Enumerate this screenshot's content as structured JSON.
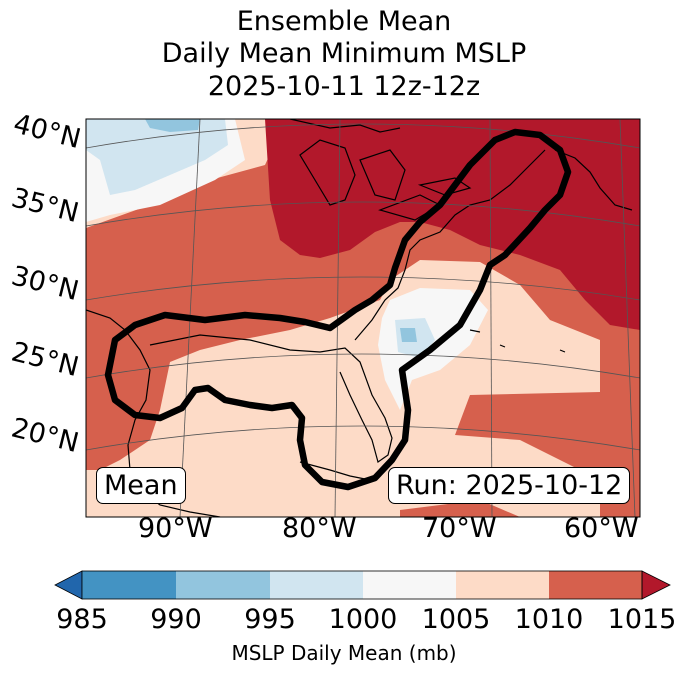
{
  "title": {
    "line1": "Ensemble Mean",
    "line2": "Daily Mean Minimum MSLP",
    "line3": "2025-10-11 12z-12z"
  },
  "map": {
    "lat_labels": [
      "40°N",
      "35°N",
      "30°N",
      "25°N",
      "20°N"
    ],
    "lon_labels": [
      "90°W",
      "80°W",
      "70°W",
      "60°W"
    ],
    "mean_box": "Mean",
    "run_box": "Run: 2025-10-12",
    "fill_colors": {
      "985-990": "#4393c3",
      "990-995": "#92c5de",
      "995-1000": "#d1e5f0",
      "1000-1005": "#f7f7f7",
      "1005-1010": "#fddbc7",
      "1010-1015": "#d6604d",
      "over-1015": "#b2182b"
    }
  },
  "colorbar": {
    "ticks": [
      "985",
      "990",
      "995",
      "1000",
      "1005",
      "1010",
      "1015"
    ],
    "colors": [
      "#2166ac",
      "#4393c3",
      "#92c5de",
      "#d1e5f0",
      "#f7f7f7",
      "#fddbc7",
      "#d6604d",
      "#b2182b"
    ],
    "label": "MSLP Daily Mean (mb)"
  }
}
